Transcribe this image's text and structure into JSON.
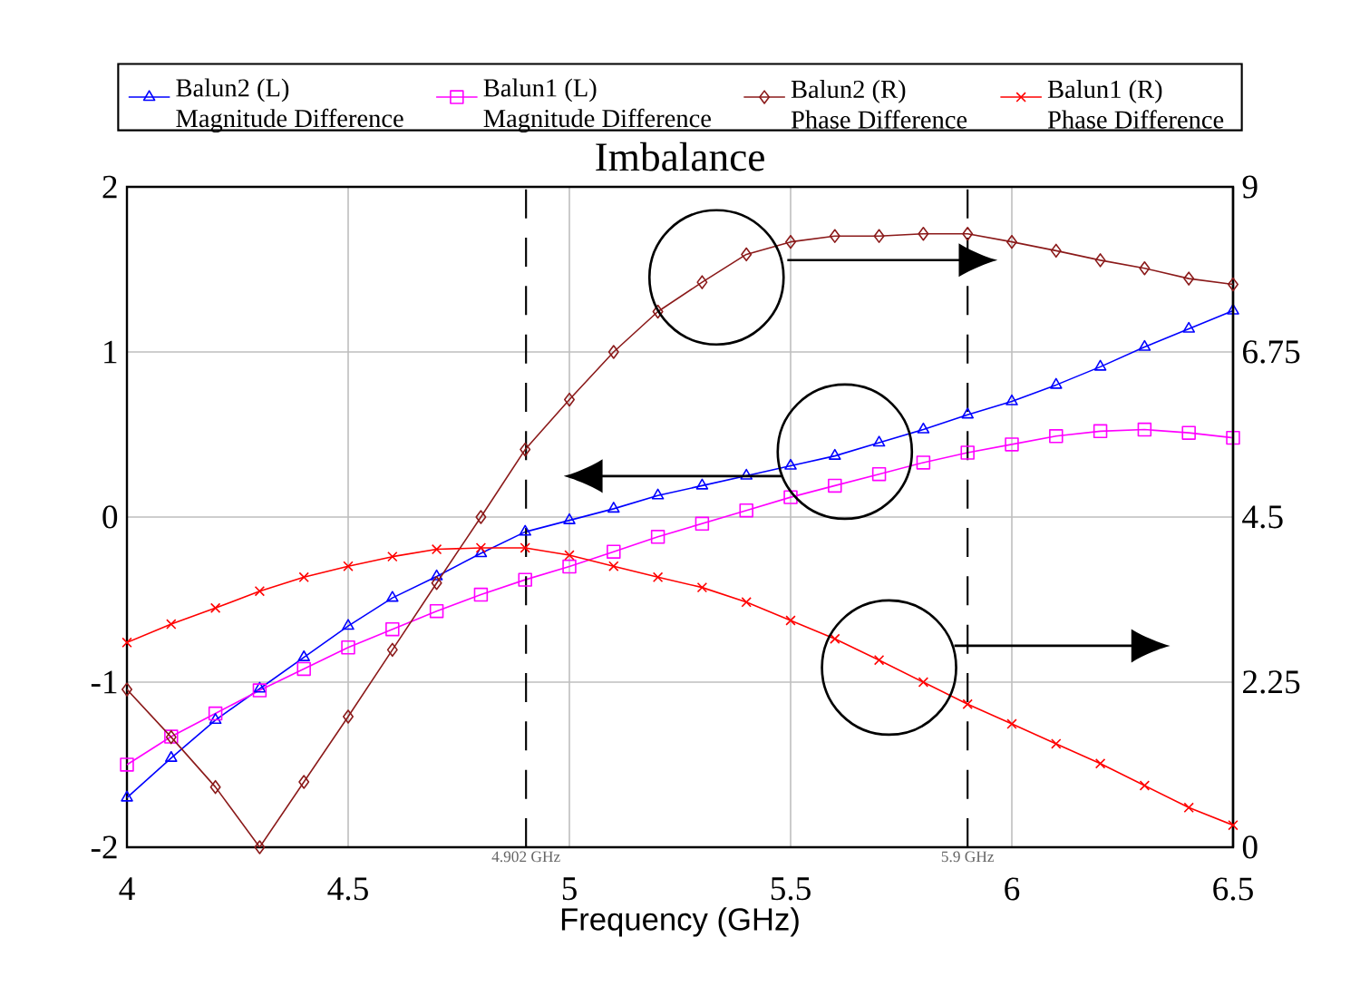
{
  "chart_data": {
    "type": "line",
    "title": "Imbalance",
    "xlabel": "Frequency (GHz)",
    "x": [
      4.0,
      4.1,
      4.2,
      4.3,
      4.4,
      4.5,
      4.6,
      4.7,
      4.8,
      4.9,
      5.0,
      5.1,
      5.2,
      5.3,
      5.4,
      5.5,
      5.6,
      5.7,
      5.8,
      5.9,
      6.0,
      6.1,
      6.2,
      6.3,
      6.4,
      6.5
    ],
    "series": [
      {
        "name": "Balun2 (L) Magnitude Difference",
        "color": "#0000ff",
        "marker": "triangle",
        "values": [
          -1.7,
          -1.46,
          -1.23,
          -1.04,
          -0.85,
          -0.66,
          -0.49,
          -0.36,
          -0.22,
          -0.09,
          -0.02,
          0.05,
          0.13,
          0.19,
          0.25,
          0.31,
          0.37,
          0.45,
          0.53,
          0.62,
          0.7,
          0.8,
          0.91,
          1.03,
          1.14,
          1.25
        ]
      },
      {
        "name": "Balun1 (L) Magnitude Difference",
        "color": "#ff00ff",
        "marker": "square",
        "values": [
          -1.5,
          -1.33,
          -1.19,
          -1.05,
          -0.92,
          -0.79,
          -0.68,
          -0.57,
          -0.47,
          -0.38,
          -0.3,
          -0.21,
          -0.12,
          -0.04,
          0.04,
          0.12,
          0.19,
          0.26,
          0.33,
          0.39,
          0.44,
          0.49,
          0.52,
          0.53,
          0.51,
          0.48
        ]
      },
      {
        "name": "Balun2 (R) Phase Difference",
        "color": "#8b1a1a",
        "marker": "diamond",
        "axis": "y2",
        "values": [
          2.15,
          1.5,
          0.82,
          0,
          0.89,
          1.78,
          2.69,
          3.6,
          4.5,
          5.42,
          6.1,
          6.75,
          7.3,
          7.7,
          8.08,
          8.25,
          8.33,
          8.33,
          8.36,
          8.36,
          8.25,
          8.13,
          8.0,
          7.89,
          7.75,
          7.67
        ]
      },
      {
        "name": "Balun1 (R) Phase Difference",
        "color": "#ff0000",
        "marker": "cross",
        "axis": "y2",
        "values": [
          2.79,
          3.04,
          3.26,
          3.49,
          3.68,
          3.83,
          3.96,
          4.06,
          4.08,
          4.08,
          3.98,
          3.83,
          3.68,
          3.54,
          3.34,
          3.09,
          2.84,
          2.55,
          2.25,
          1.95,
          1.68,
          1.41,
          1.14,
          0.84,
          0.54,
          0.3
        ]
      }
    ],
    "xlim": [
      4,
      6.5
    ],
    "xticks": [
      4,
      4.5,
      5,
      5.5,
      6,
      6.5
    ],
    "ylim": [
      -2,
      2
    ],
    "yticks": [
      -2,
      -1,
      0,
      1,
      2
    ],
    "y2lim": [
      0,
      9
    ],
    "y2ticks": [
      0,
      2.25,
      4.5,
      6.75,
      9
    ],
    "grid": true,
    "legend": "top",
    "ref_lines": [
      {
        "axis": "x",
        "value": 4.902,
        "label": "4.902 GHz",
        "color": "#000000",
        "line_style": "dashed"
      },
      {
        "axis": "x",
        "value": 5.9,
        "label": "5.9 GHz",
        "color": "#000000",
        "line_style": "dashed"
      }
    ]
  }
}
